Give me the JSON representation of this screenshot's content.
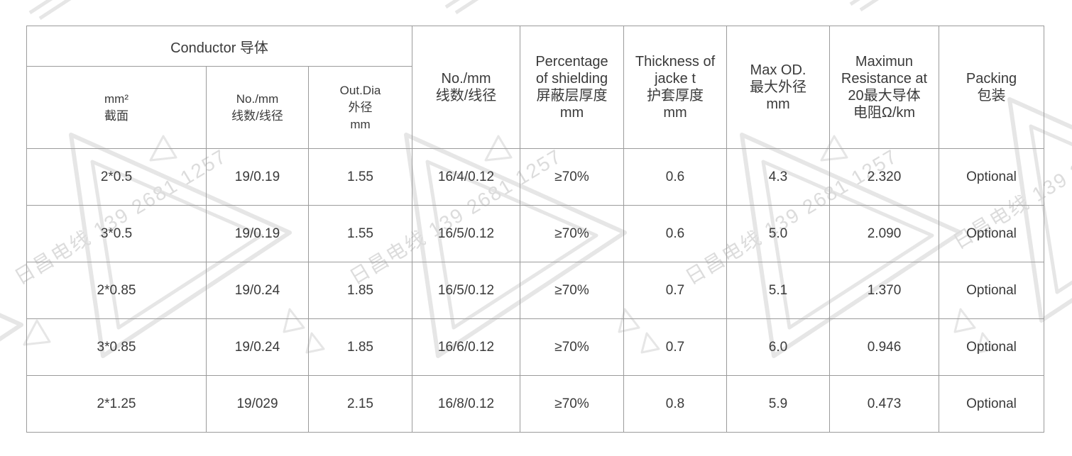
{
  "watermark": {
    "text": "日昌电线 139 2681 1257",
    "shape_color": "#e6e6e6",
    "text_color": "#dcdcdc"
  },
  "table": {
    "header": {
      "conductor_group": "Conductor 导体",
      "columns": [
        {
          "label": "mm²\n截面"
        },
        {
          "label": "No./mm\n线数/线径"
        },
        {
          "label": "Out.Dia\n外径\nmm"
        },
        {
          "label": "No./mm\n线数/线径"
        },
        {
          "label": "Percentage\nof shielding\n屏蔽层厚度\nmm"
        },
        {
          "label": "Thickness of\njacke t\n护套厚度\nmm"
        },
        {
          "label": "Max OD.\n最大外径\nmm"
        },
        {
          "label": "Maximun\nResistance at\n20最大导体\n电阻Ω/km"
        },
        {
          "label": "Packing\n包装"
        }
      ]
    },
    "rows": [
      [
        "2*0.5",
        "19/0.19",
        "1.55",
        "16/4/0.12",
        "≥70%",
        "0.6",
        "4.3",
        "2.320",
        "Optional"
      ],
      [
        "3*0.5",
        "19/0.19",
        "1.55",
        "16/5/0.12",
        "≥70%",
        "0.6",
        "5.0",
        "2.090",
        "Optional"
      ],
      [
        "2*0.85",
        "19/0.24",
        "1.85",
        "16/5/0.12",
        "≥70%",
        "0.7",
        "5.1",
        "1.370",
        "Optional"
      ],
      [
        "3*0.85",
        "19/0.24",
        "1.85",
        "16/6/0.12",
        "≥70%",
        "0.7",
        "6.0",
        "0.946",
        "Optional"
      ],
      [
        "2*1.25",
        "19/029",
        "2.15",
        "16/8/0.12",
        "≥70%",
        "0.8",
        "5.9",
        "0.473",
        "Optional"
      ]
    ]
  },
  "style": {
    "border_color": "#9b9b9b",
    "text_color": "#3a3a3a",
    "background": "#ffffff"
  }
}
